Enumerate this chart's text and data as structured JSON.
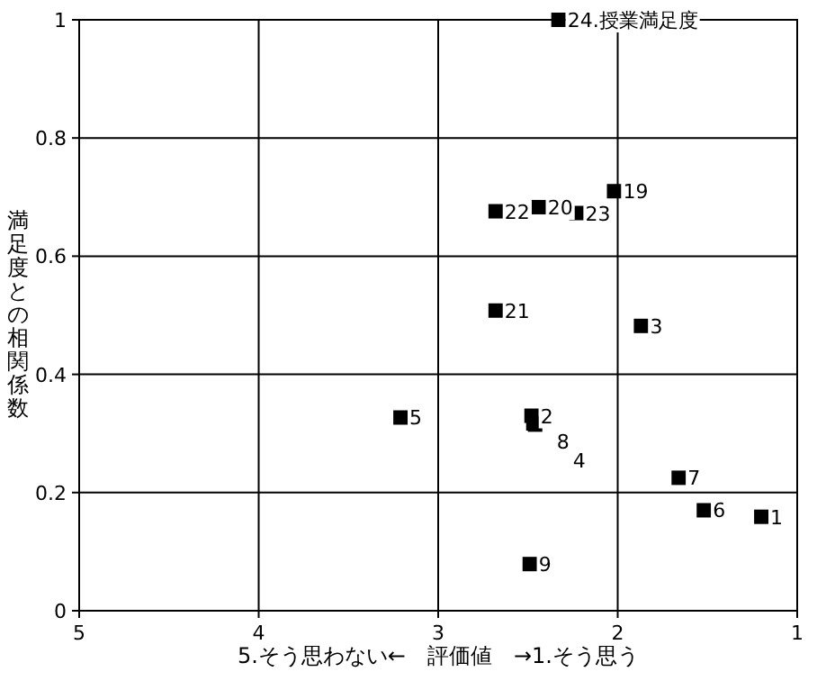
{
  "chart_data": {
    "type": "scatter",
    "xlabel": "5.そう思わない←　評価値　→1.そう思う",
    "ylabel": "満足度との相関係数",
    "x": [
      2.33,
      2.02,
      2.68,
      2.44,
      2.23,
      2.68,
      1.87,
      3.21,
      2.48,
      2.47,
      2.46,
      1.66,
      1.52,
      1.2,
      2.49
    ],
    "series": [
      {
        "color": "#000000",
        "values": [
          1.0,
          0.71,
          0.676,
          0.683,
          0.673,
          0.508,
          0.482,
          0.327,
          0.33,
          0.317,
          0.315,
          0.225,
          0.17,
          0.159,
          0.079
        ]
      }
    ],
    "annotations": [
      {
        "text": "24.授業満足度",
        "x": 2.33,
        "y": 1.0
      },
      {
        "text": "19",
        "x": 2.02,
        "y": 0.71
      },
      {
        "text": "22",
        "x": 2.68,
        "y": 0.676
      },
      {
        "text": "20",
        "x": 2.44,
        "y": 0.683
      },
      {
        "text": "23",
        "x": 2.23,
        "y": 0.673
      },
      {
        "text": "21",
        "x": 2.68,
        "y": 0.508
      },
      {
        "text": "3",
        "x": 1.87,
        "y": 0.482
      },
      {
        "text": "5",
        "x": 3.21,
        "y": 0.327
      },
      {
        "text": "2",
        "x": 2.48,
        "y": 0.33
      },
      {
        "text": "8",
        "x": 2.47,
        "y": 0.317
      },
      {
        "text": "4",
        "x": 2.46,
        "y": 0.315
      },
      {
        "text": "7",
        "x": 1.66,
        "y": 0.225
      },
      {
        "text": "6",
        "x": 1.52,
        "y": 0.17
      },
      {
        "text": "1",
        "x": 1.2,
        "y": 0.159
      },
      {
        "text": "9",
        "x": 2.49,
        "y": 0.079
      }
    ],
    "xlim": [
      5,
      1
    ],
    "xticks": [
      5,
      4,
      3,
      2,
      1
    ],
    "ylim": [
      0,
      1
    ],
    "yticks": [
      0,
      0.2,
      0.4,
      0.6,
      0.8,
      1
    ],
    "grid": true,
    "marker": "square"
  }
}
